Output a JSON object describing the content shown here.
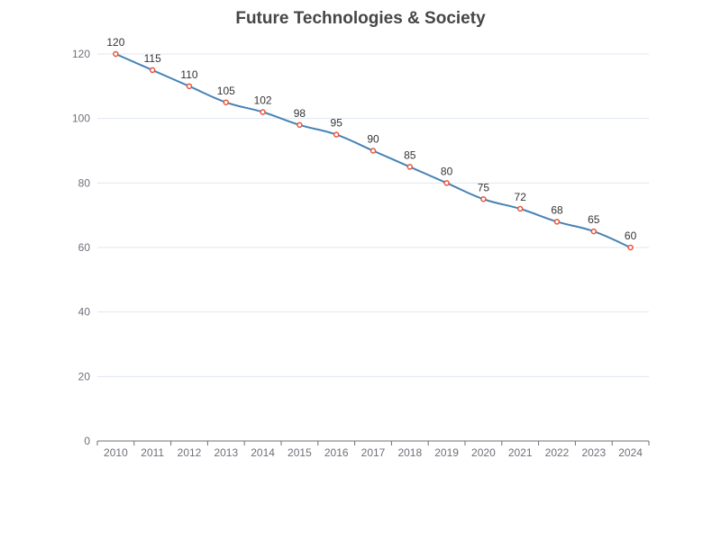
{
  "chart_data": {
    "type": "line",
    "title": "Future Technologies & Society",
    "xlabel": "",
    "ylabel": "",
    "categories": [
      "2010",
      "2011",
      "2012",
      "2013",
      "2014",
      "2015",
      "2016",
      "2017",
      "2018",
      "2019",
      "2020",
      "2021",
      "2022",
      "2023",
      "2024"
    ],
    "series": [
      {
        "values": [
          120,
          115,
          110,
          105,
          102,
          98,
          95,
          90,
          85,
          80,
          75,
          72,
          68,
          65,
          60
        ],
        "color": "#4682b4",
        "marker_color": "#e8553c",
        "smooth": true,
        "show_data_labels": true
      }
    ],
    "ylim": [
      0,
      120
    ],
    "yticks": [
      0,
      20,
      40,
      60,
      80,
      100,
      120
    ],
    "grid": true,
    "legend": "none"
  }
}
